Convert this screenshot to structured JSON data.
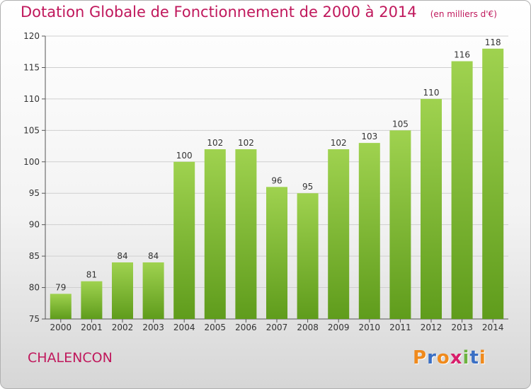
{
  "header": {
    "title": "Dotation Globale de Fonctionnement de 2000 à 2014",
    "unit": "(en milliers d'€)"
  },
  "footer": {
    "commune": "CHALENCON",
    "logo": "Proxiti",
    "logo_colors": [
      "#f08a1c",
      "#3a6fc4",
      "#f08a1c",
      "#d81f6b",
      "#6db33f",
      "#3a6fc4",
      "#f08a1c"
    ]
  },
  "colors": {
    "title": "#c0185c",
    "bar_top": "#9fd24f",
    "bar_bottom": "#5f9c1c",
    "grid": "#cfcfcf",
    "axis": "#555555"
  },
  "chart_data": {
    "type": "bar",
    "title": "Dotation Globale de Fonctionnement de 2000 à 2014",
    "xlabel": "",
    "ylabel": "",
    "categories": [
      "2000",
      "2001",
      "2002",
      "2003",
      "2004",
      "2005",
      "2006",
      "2007",
      "2008",
      "2009",
      "2010",
      "2011",
      "2012",
      "2013",
      "2014"
    ],
    "values": [
      79,
      81,
      84,
      84,
      100,
      102,
      102,
      96,
      95,
      102,
      103,
      105,
      110,
      116,
      118
    ],
    "ylim": [
      75,
      120
    ],
    "yticks": [
      75,
      80,
      85,
      90,
      95,
      100,
      105,
      110,
      115,
      120
    ],
    "grid": true,
    "data_labels": true
  }
}
